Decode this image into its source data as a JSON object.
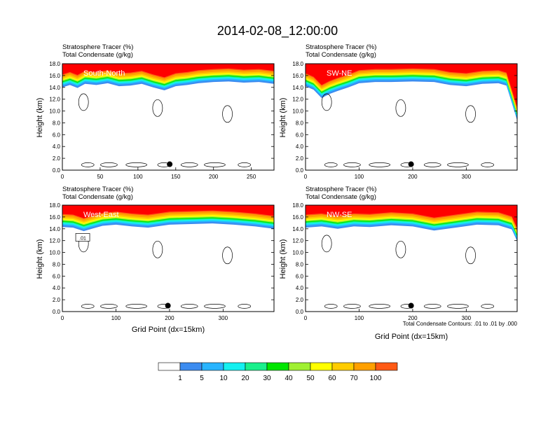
{
  "title": "2014-02-08_12:00:00",
  "subtitle_line1": "Stratosphere Tracer   (%)",
  "subtitle_line2": "Total Condensate   (g/kg)",
  "ylabel": "Height (km)",
  "xlabel": "Grid Point (dx=15km)",
  "contour_note": "Total Condensate Contours: .01 to .01 by .000",
  "colors": {
    "fill_levels": [
      "#ffffff",
      "#3c8cf0",
      "#28b4ff",
      "#14f0f0",
      "#19f08c",
      "#00e600",
      "#a0f032",
      "#ffff00",
      "#ffcc00",
      "#ffa000",
      "#ff5a14",
      "#ff0000"
    ]
  },
  "colorbar": {
    "labels": [
      "1",
      "5",
      "10",
      "20",
      "30",
      "40",
      "50",
      "60",
      "70",
      "100"
    ]
  },
  "chart_data": [
    {
      "type": "heatmap",
      "panel": "South-North",
      "label": "South-North",
      "xlim": [
        0,
        280
      ],
      "ylim": [
        0,
        18
      ],
      "xticks": [
        "0",
        "50",
        "100",
        "150",
        "200",
        "250"
      ],
      "xtick_values": [
        0,
        50,
        100,
        150,
        200,
        250
      ],
      "yticks": [
        "0.0",
        "2.0",
        "4.0",
        "6.0",
        "8.0",
        "10.0",
        "12.0",
        "14.0",
        "16.0",
        "18.0"
      ],
      "tracer_front_km": [
        [
          0,
          14.6
        ],
        [
          10,
          15.0
        ],
        [
          20,
          14.5
        ],
        [
          30,
          15.2
        ],
        [
          45,
          15.0
        ],
        [
          60,
          15.3
        ],
        [
          75,
          14.8
        ],
        [
          90,
          14.9
        ],
        [
          105,
          15.2
        ],
        [
          120,
          14.6
        ],
        [
          135,
          14.1
        ],
        [
          150,
          14.8
        ],
        [
          165,
          15.0
        ],
        [
          180,
          15.3
        ],
        [
          200,
          15.5
        ],
        [
          220,
          15.6
        ],
        [
          240,
          15.4
        ],
        [
          260,
          15.5
        ],
        [
          280,
          15.2
        ]
      ],
      "marker": {
        "x": 142,
        "y": 1.0
      },
      "contour_label": "",
      "contour_label_pos": null
    },
    {
      "type": "heatmap",
      "panel": "SW-NE",
      "label": "SW-NE",
      "xlim": [
        0,
        395
      ],
      "ylim": [
        0,
        18
      ],
      "xticks": [
        "0",
        "100",
        "200",
        "300"
      ],
      "xtick_values": [
        0,
        100,
        200,
        300
      ],
      "yticks": [
        "0.0",
        "2.0",
        "4.0",
        "6.0",
        "8.0",
        "10.0",
        "12.0",
        "14.0",
        "16.0",
        "18.0"
      ],
      "tracer_front_km": [
        [
          0,
          14.8
        ],
        [
          15,
          14.2
        ],
        [
          30,
          12.8
        ],
        [
          45,
          13.5
        ],
        [
          60,
          14.0
        ],
        [
          80,
          14.6
        ],
        [
          100,
          15.3
        ],
        [
          130,
          15.5
        ],
        [
          160,
          15.5
        ],
        [
          200,
          15.6
        ],
        [
          240,
          15.5
        ],
        [
          270,
          15.0
        ],
        [
          300,
          14.8
        ],
        [
          330,
          15.2
        ],
        [
          360,
          15.3
        ],
        [
          375,
          14.9
        ],
        [
          385,
          12.0
        ],
        [
          395,
          9.0
        ]
      ],
      "marker": {
        "x": 197,
        "y": 1.0
      },
      "contour_label": "",
      "contour_label_pos": null
    },
    {
      "type": "heatmap",
      "panel": "West-East",
      "label": "West-East",
      "xlim": [
        0,
        395
      ],
      "ylim": [
        0,
        18
      ],
      "xticks": [
        "0",
        "100",
        "200",
        "300"
      ],
      "xtick_values": [
        0,
        100,
        200,
        300
      ],
      "yticks": [
        "0.0",
        "2.0",
        "4.0",
        "6.0",
        "8.0",
        "10.0",
        "12.0",
        "14.0",
        "16.0",
        "18.0"
      ],
      "tracer_front_km": [
        [
          0,
          14.9
        ],
        [
          20,
          14.8
        ],
        [
          40,
          14.2
        ],
        [
          55,
          14.6
        ],
        [
          75,
          15.1
        ],
        [
          100,
          15.3
        ],
        [
          130,
          15.0
        ],
        [
          160,
          14.8
        ],
        [
          200,
          15.3
        ],
        [
          240,
          15.4
        ],
        [
          280,
          15.5
        ],
        [
          320,
          15.3
        ],
        [
          360,
          15.0
        ],
        [
          395,
          14.6
        ]
      ],
      "marker": {
        "x": 197,
        "y": 1.0
      },
      "contour_label": ".01",
      "contour_label_pos": [
        38,
        12.5
      ]
    },
    {
      "type": "heatmap",
      "panel": "NW-SE",
      "label": "NW-SE",
      "xlim": [
        0,
        395
      ],
      "ylim": [
        0,
        18
      ],
      "xticks": [
        "0",
        "100",
        "200",
        "300"
      ],
      "xtick_values": [
        0,
        100,
        200,
        300
      ],
      "yticks": [
        "0.0",
        "2.0",
        "4.0",
        "6.0",
        "8.0",
        "10.0",
        "12.0",
        "14.0",
        "16.0",
        "18.0"
      ],
      "tracer_front_km": [
        [
          0,
          14.8
        ],
        [
          30,
          15.0
        ],
        [
          60,
          14.6
        ],
        [
          90,
          15.0
        ],
        [
          120,
          14.9
        ],
        [
          160,
          15.2
        ],
        [
          200,
          15.0
        ],
        [
          240,
          14.3
        ],
        [
          280,
          14.8
        ],
        [
          320,
          15.3
        ],
        [
          360,
          15.2
        ],
        [
          385,
          14.5
        ],
        [
          395,
          12.5
        ]
      ],
      "marker": {
        "x": 197,
        "y": 1.0
      },
      "contour_label": "",
      "contour_label_pos": null
    }
  ]
}
